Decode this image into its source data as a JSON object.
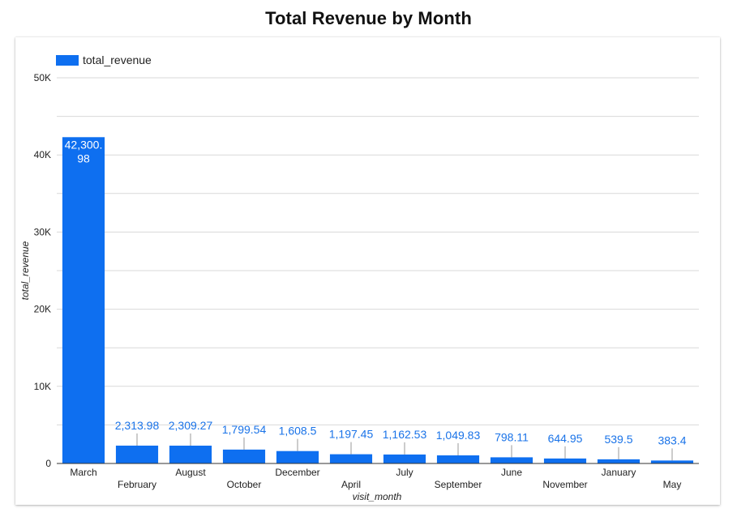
{
  "title": "Total Revenue by Month",
  "colors": {
    "bar": "#0e6ff0",
    "grid": "#d9d9d9",
    "axis": "#333333",
    "label": "#1a73e8"
  },
  "chart_data": {
    "type": "bar",
    "title": "Total Revenue by Month",
    "xlabel": "visit_month",
    "ylabel": "total_revenue",
    "ylim": [
      0,
      50000
    ],
    "yticks": [
      0,
      10000,
      20000,
      30000,
      40000,
      50000
    ],
    "ytick_labels": [
      "0",
      "10K",
      "20K",
      "30K",
      "40K",
      "50K"
    ],
    "grid": true,
    "legend_position": "top-left",
    "categories": [
      "March",
      "February",
      "August",
      "October",
      "December",
      "April",
      "July",
      "September",
      "June",
      "November",
      "January",
      "May"
    ],
    "series": [
      {
        "name": "total_revenue",
        "values": [
          42300.98,
          2313.98,
          2309.27,
          1799.54,
          1608.5,
          1197.45,
          1162.53,
          1049.83,
          798.11,
          644.95,
          539.5,
          383.4
        ]
      }
    ],
    "data_labels": [
      "42,300.98",
      "2,313.98",
      "2,309.27",
      "1,799.54",
      "1,608.5",
      "1,197.45",
      "1,162.53",
      "1,049.83",
      "798.11",
      "644.95",
      "539.5",
      "383.4"
    ]
  }
}
